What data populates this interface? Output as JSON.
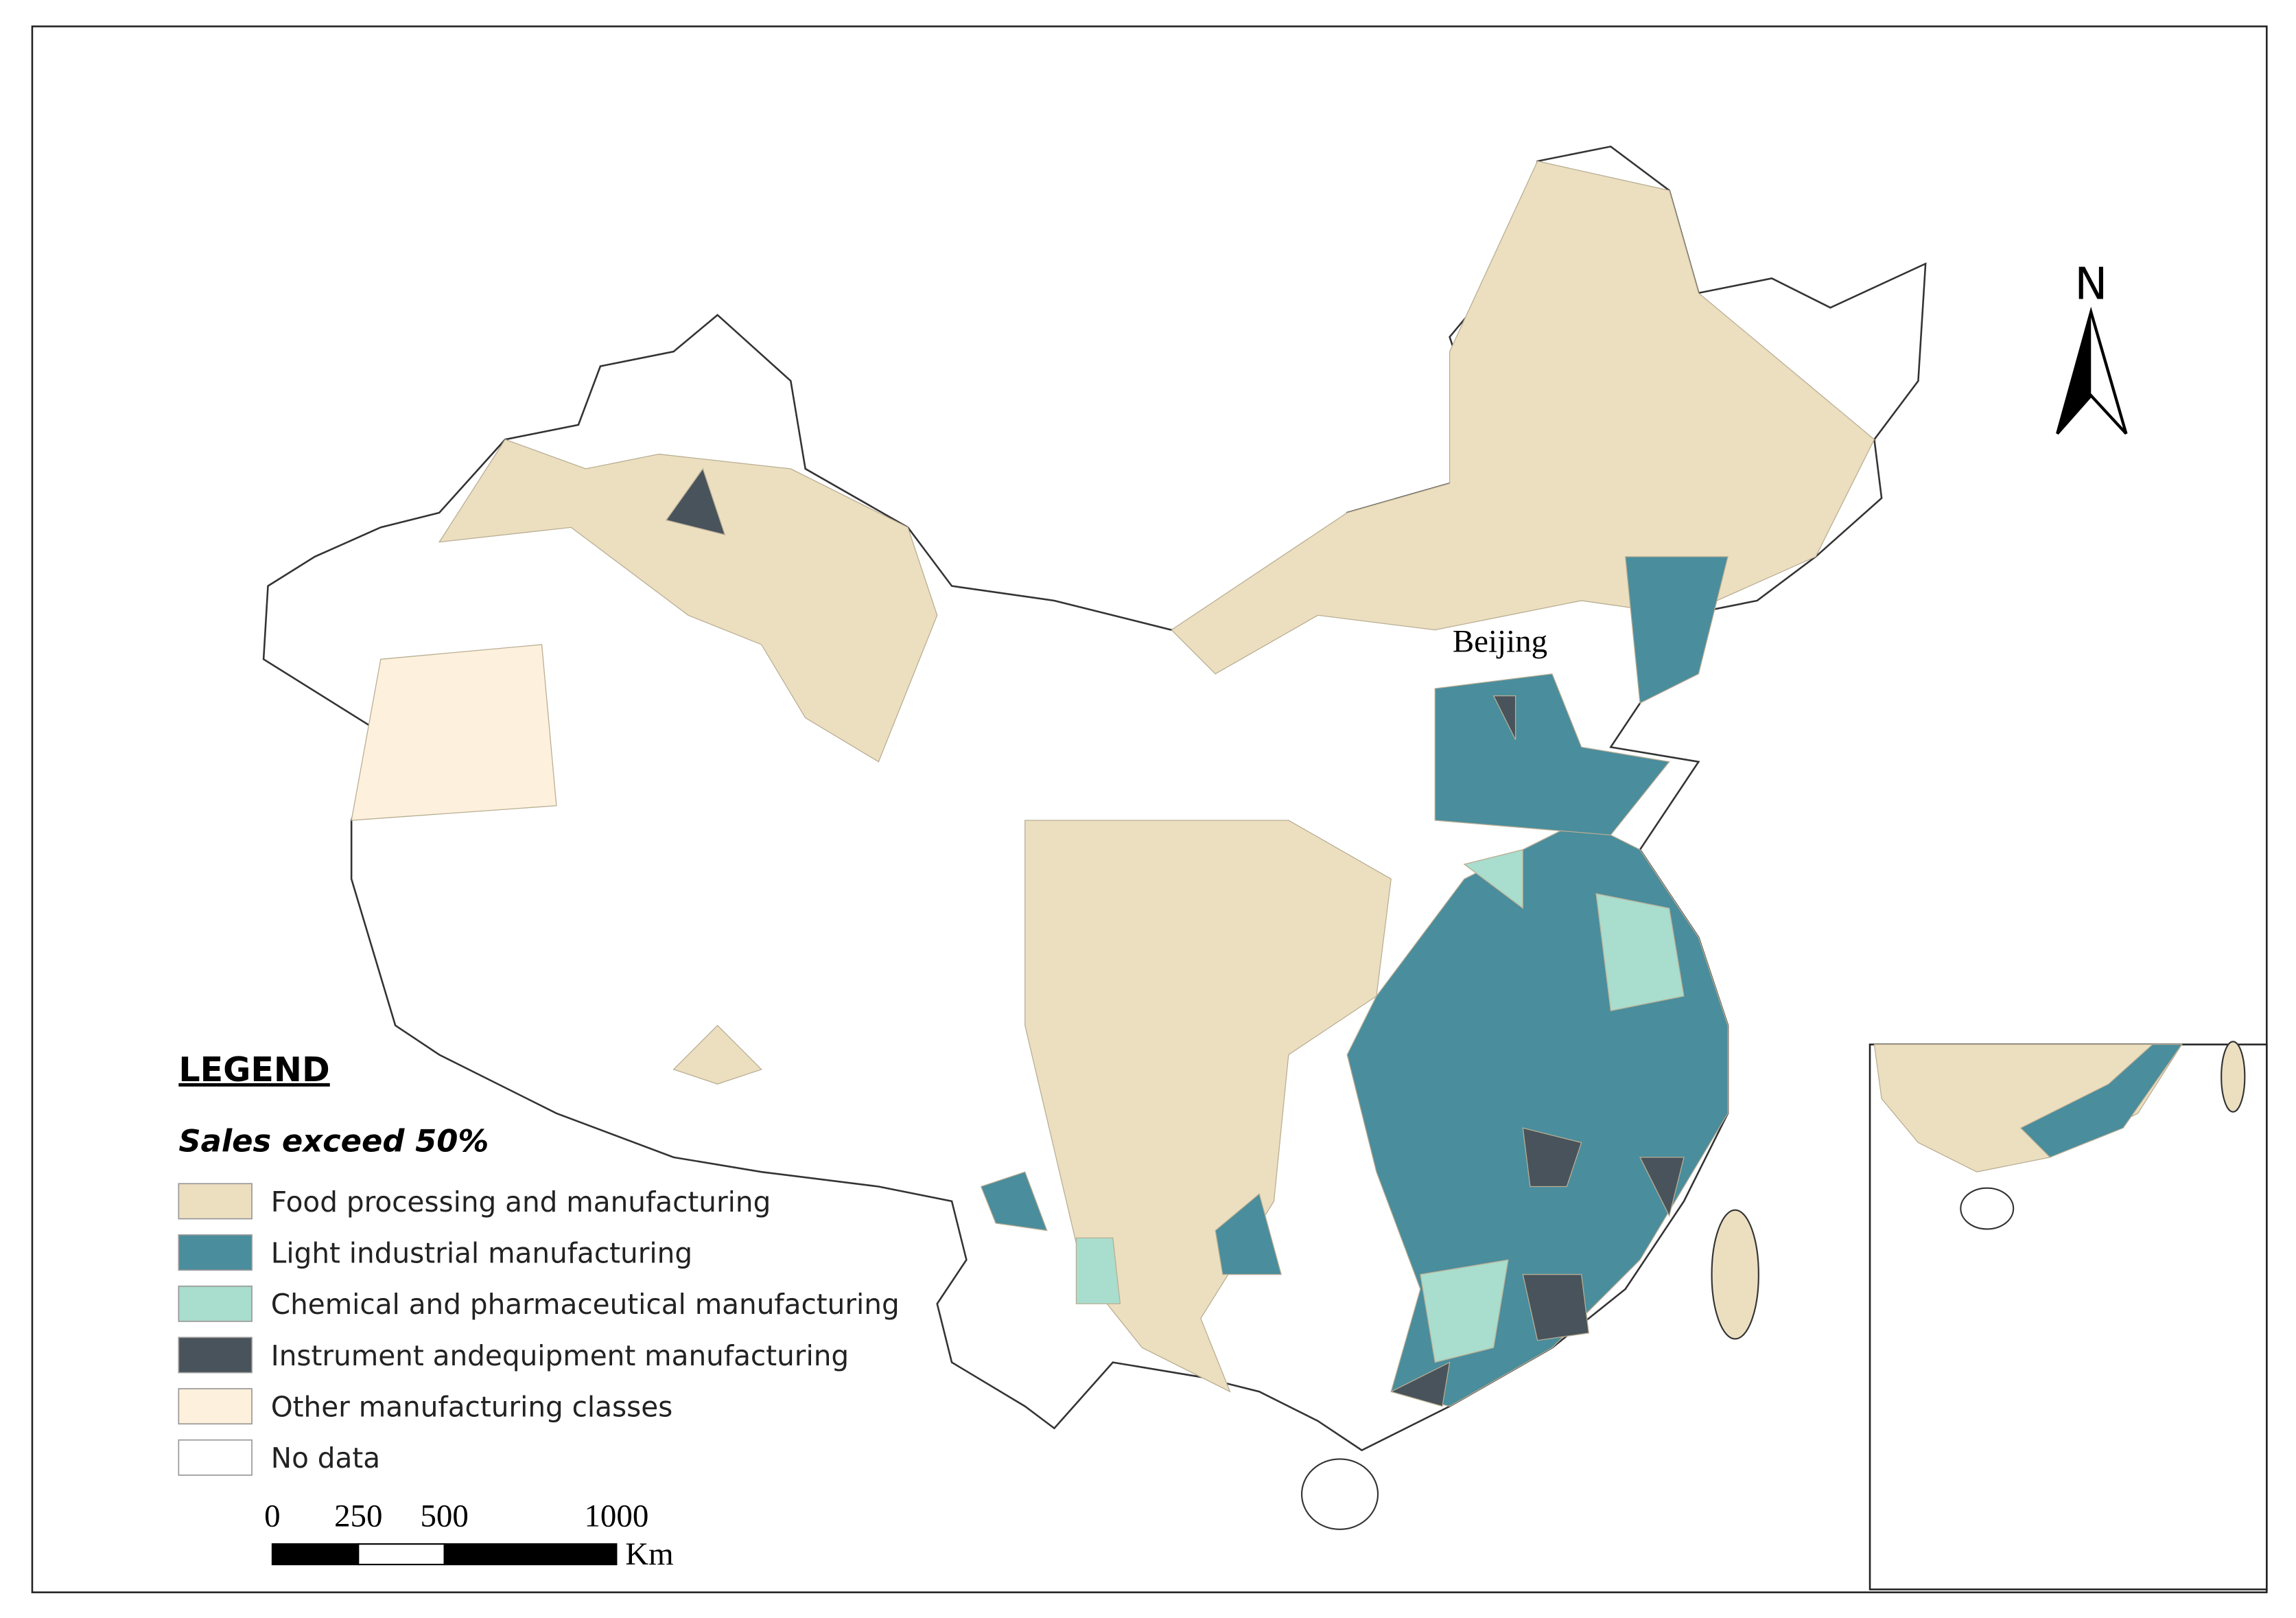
{
  "map": {
    "labels": {
      "city": "Beijing",
      "north": "N"
    },
    "legend": {
      "title": "LEGEND",
      "subtitle": "Sales exceed 50%",
      "items": [
        {
          "label": "Food processing and manufacturing",
          "color": "#ecdfc0"
        },
        {
          "label": "Light industrial manufacturing",
          "color": "#4a8d9c"
        },
        {
          "label": "Chemical and pharmaceutical manufacturing",
          "color": "#a9ddcd"
        },
        {
          "label": "Instrument andequipment manufacturing",
          "color": "#49535b"
        },
        {
          "label": "Other manufacturing classes",
          "color": "#fdf0dc"
        },
        {
          "label": "No data",
          "color": "#ffffff"
        }
      ]
    },
    "scale_bar": {
      "ticks": [
        0,
        250,
        500,
        1000
      ],
      "unit": "Km"
    }
  }
}
